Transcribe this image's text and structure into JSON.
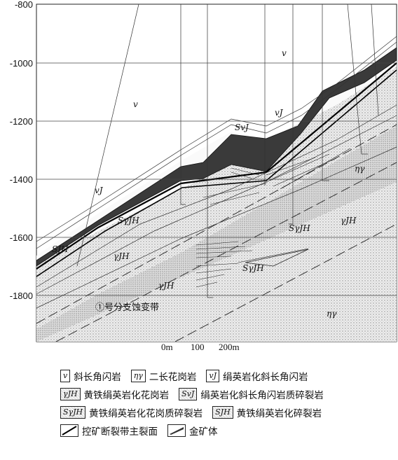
{
  "y_axis": {
    "ticks": [
      "-800",
      "-1000",
      "-1200",
      "-1400",
      "-1600",
      "-1800"
    ]
  },
  "rock_labels": {
    "v_top": "v",
    "v_mid": "v",
    "vJ_top": "vJ",
    "vJ_left": "vJ",
    "svj": "SvJ",
    "eta_right": "ηγ",
    "svjh_left": "SγJH",
    "svjh_mid": "SγJH",
    "vjh_right": "γJH",
    "sjh": "SJH",
    "vjh_left": "γJH",
    "svjh_low": "SγJH",
    "vjh_low": "γJH",
    "eta_bottom": "ηγ"
  },
  "zone_caption": "①号分支蚀变带",
  "scale_bar": {
    "t0": "0m",
    "t1": "100",
    "t2": "200m"
  },
  "legend": {
    "row1": [
      {
        "code": "v",
        "text": "斜长角闪岩"
      },
      {
        "code": "ηγ",
        "text": "二长花岗岩"
      },
      {
        "code": "vJ",
        "text": "绢英岩化斜长角闪岩"
      }
    ],
    "row2": [
      {
        "code": "γJH",
        "text": "黄铁绢英岩化花岗岩"
      },
      {
        "code": "SvJ",
        "text": "绢英岩化斜长角闪岩质碎裂岩"
      }
    ],
    "row3": [
      {
        "code": "SγJH",
        "text": "黄铁绢英岩化花岗质碎裂岩"
      },
      {
        "code": "SJH",
        "text": "黄铁绢英岩化碎裂岩"
      }
    ],
    "row4": [
      {
        "text": "控矿断裂带主裂面"
      },
      {
        "text": "金矿体"
      }
    ]
  }
}
